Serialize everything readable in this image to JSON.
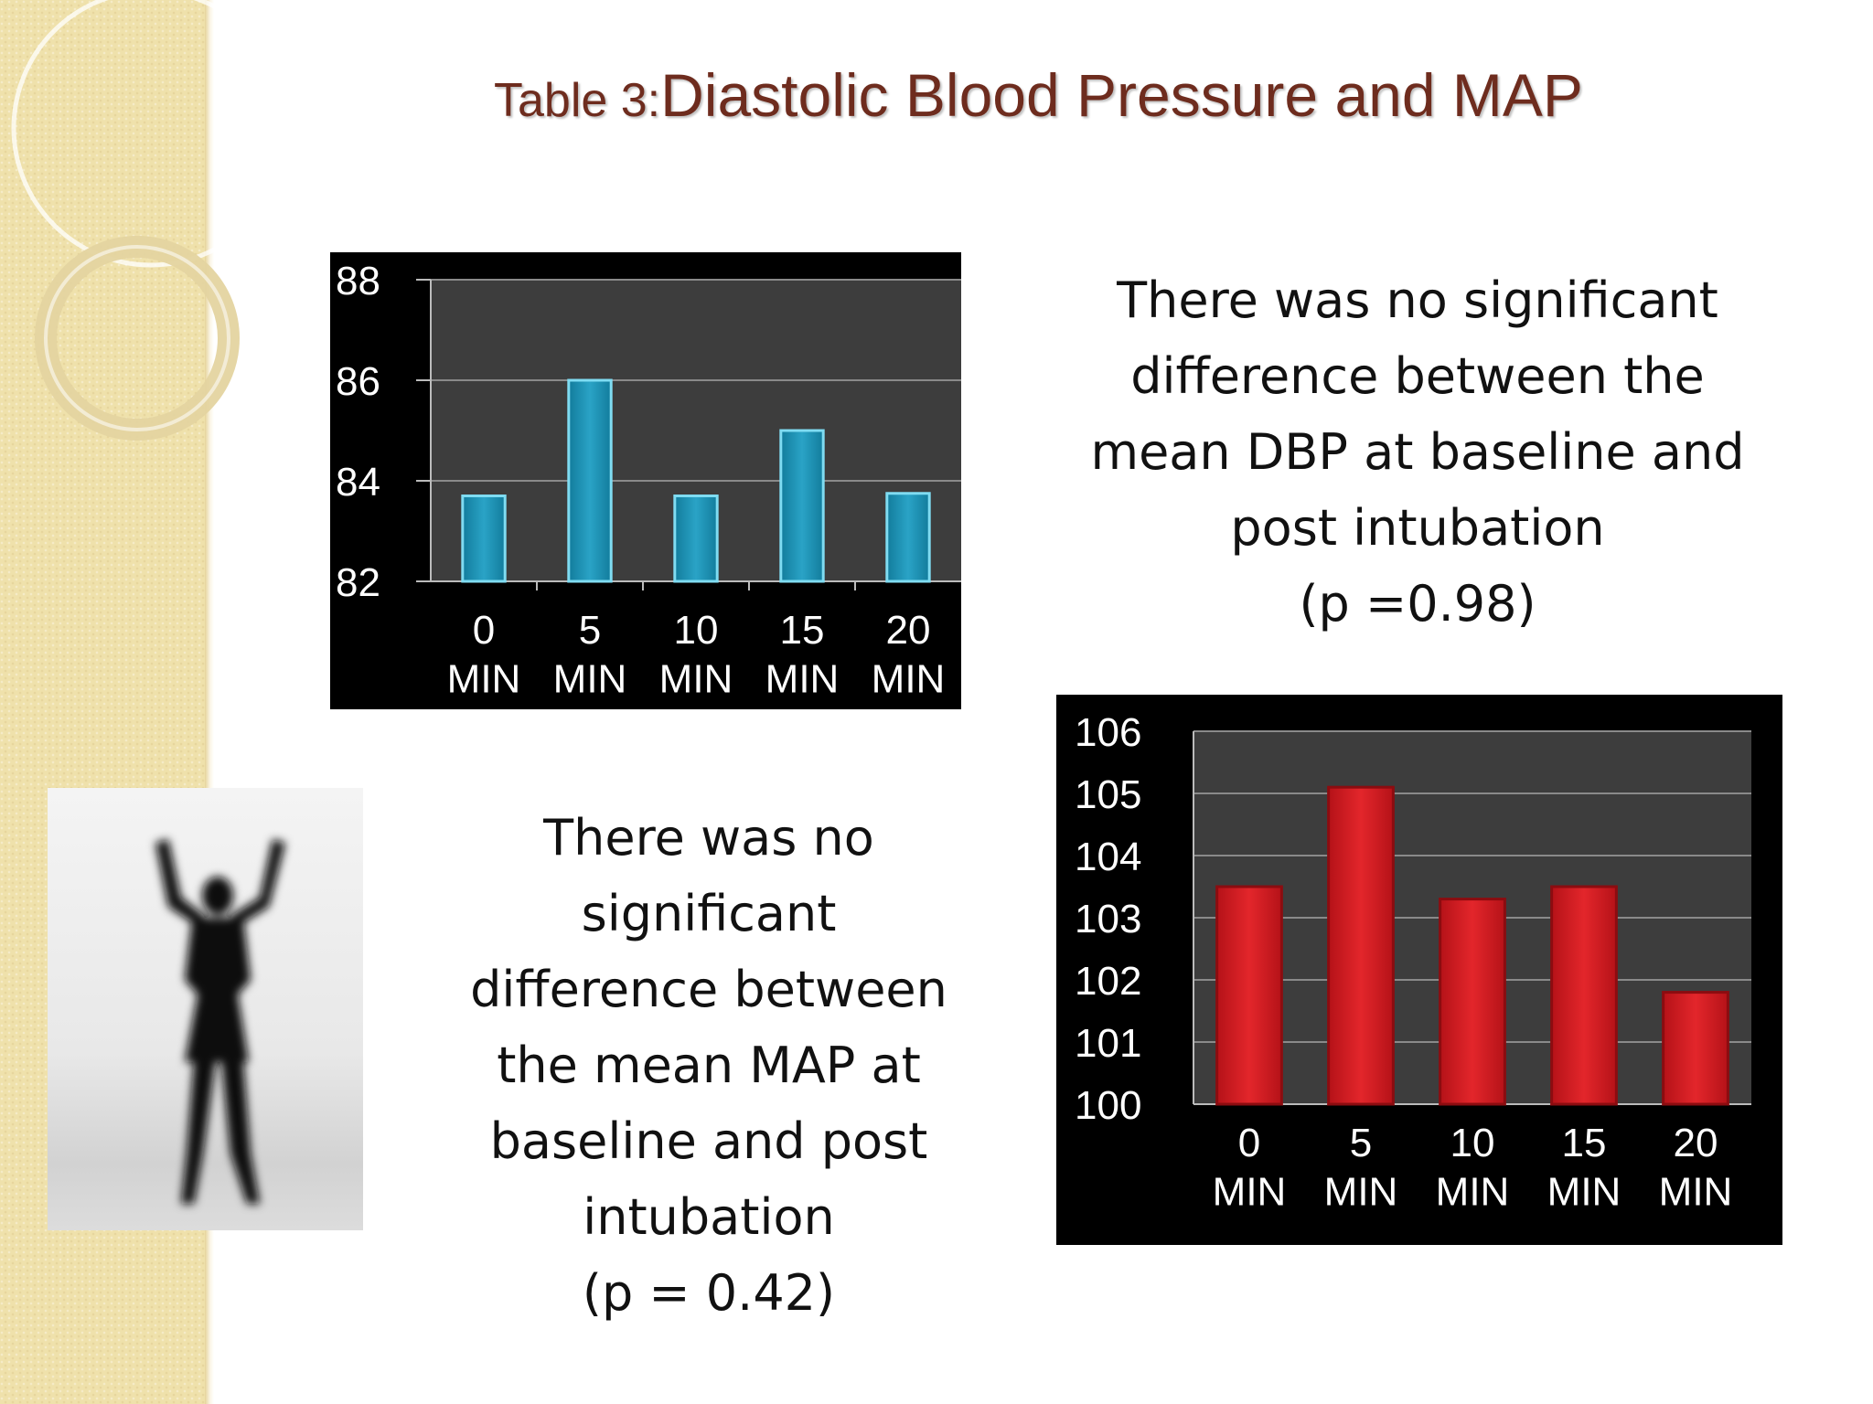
{
  "slide": {
    "title_prefix": "Table 3:",
    "title_main": "Diastolic Blood Pressure and MAP"
  },
  "notes": {
    "dbp": "There was no significant\ndifference between the\nmean DBP at baseline and\npost intubation\n(p =0.98)",
    "map": "There was no\nsignificant\ndifference between\nthe mean MAP at\nbaseline and post\nintubation\n(p = 0.42)"
  },
  "colors": {
    "title": "#6e2c1e",
    "dbp_bar": "#2aa3c6",
    "map_bar": "#e3262b",
    "plot_bg": "#3d3d3d",
    "chart_bg": "#000000"
  },
  "image": {
    "icon": "person-arms-raised-silhouette"
  },
  "chart_data": [
    {
      "type": "bar",
      "categories": [
        "0 MIN",
        "5 MIN",
        "10 MIN",
        "15 MIN",
        "20 MIN"
      ],
      "values": [
        83.7,
        86.0,
        83.7,
        85.0,
        83.75
      ],
      "yticks": [
        82,
        84,
        86,
        88
      ],
      "ylim": [
        82,
        88
      ],
      "grid": true,
      "legend": "none",
      "title": "",
      "xlabel": "",
      "ylabel": ""
    },
    {
      "type": "bar",
      "categories": [
        "0 MIN",
        "5 MIN",
        "10 MIN",
        "15 MIN",
        "20 MIN"
      ],
      "values": [
        103.5,
        105.1,
        103.3,
        103.5,
        101.8
      ],
      "yticks": [
        100,
        101,
        102,
        103,
        104,
        105,
        106
      ],
      "ylim": [
        100,
        106
      ],
      "grid": true,
      "legend": "none",
      "title": "",
      "xlabel": "",
      "ylabel": ""
    }
  ]
}
